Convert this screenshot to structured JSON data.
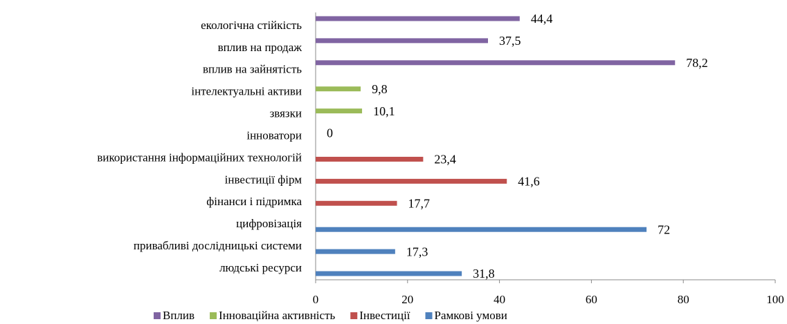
{
  "chart_data": {
    "type": "bar",
    "orientation": "horizontal",
    "categories": [
      "екологічна стійкість",
      "вплив на продаж",
      "вплив на зайнятість",
      "інтелектуальні активи",
      "звязки",
      "інноватори",
      "використання інформаційних технологій",
      "інвестиції фірм",
      "фінанси і підримка",
      "цифровізація",
      "привабливі дослідницькі системи",
      "людські ресурси"
    ],
    "series": [
      {
        "name": "Вплив",
        "color": "#8064a2",
        "values": [
          44.4,
          37.5,
          78.2,
          null,
          null,
          null,
          null,
          null,
          null,
          null,
          null,
          null
        ],
        "value_labels": [
          "44,4",
          "37,5",
          "78,2",
          null,
          null,
          null,
          null,
          null,
          null,
          null,
          null,
          null
        ]
      },
      {
        "name": "Інноваційна активність",
        "color": "#9bbb59",
        "values": [
          null,
          null,
          null,
          9.8,
          10.1,
          0,
          null,
          null,
          null,
          null,
          null,
          null
        ],
        "value_labels": [
          null,
          null,
          null,
          "9,8",
          "10,1",
          "0",
          null,
          null,
          null,
          null,
          null,
          null
        ]
      },
      {
        "name": "Інвестиції",
        "color": "#c0504d",
        "values": [
          null,
          null,
          null,
          null,
          null,
          null,
          23.4,
          41.6,
          17.7,
          null,
          null,
          null
        ],
        "value_labels": [
          null,
          null,
          null,
          null,
          null,
          null,
          "23,4",
          "41,6",
          "17,7",
          null,
          null,
          null
        ]
      },
      {
        "name": "Рамкові умови",
        "color": "#4f81bd",
        "values": [
          null,
          null,
          null,
          null,
          null,
          null,
          null,
          null,
          null,
          72,
          17.3,
          31.8
        ],
        "value_labels": [
          null,
          null,
          null,
          null,
          null,
          null,
          null,
          null,
          null,
          "72",
          "17,3",
          "31,8"
        ]
      }
    ],
    "xlim": [
      0,
      100
    ],
    "xticks": [
      0,
      20,
      40,
      60,
      80,
      100
    ],
    "legend": "bottom"
  }
}
